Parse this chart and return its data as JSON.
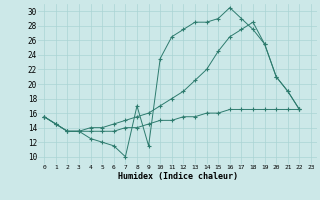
{
  "xlabel": "Humidex (Indice chaleur)",
  "background_color": "#cce8e8",
  "grid_color": "#aad4d4",
  "line_color": "#2d7b6e",
  "xlim": [
    -0.5,
    23.5
  ],
  "ylim": [
    9,
    31
  ],
  "xticks": [
    0,
    1,
    2,
    3,
    4,
    5,
    6,
    7,
    8,
    9,
    10,
    11,
    12,
    13,
    14,
    15,
    16,
    17,
    18,
    19,
    20,
    21,
    22,
    23
  ],
  "yticks": [
    10,
    12,
    14,
    16,
    18,
    20,
    22,
    24,
    26,
    28,
    30
  ],
  "line1_x": [
    0,
    1,
    2,
    3,
    4,
    5,
    6,
    7,
    8,
    9,
    10,
    11,
    12,
    13,
    14,
    15,
    16,
    17,
    18,
    19,
    20,
    21,
    22
  ],
  "line1_y": [
    15.5,
    14.5,
    13.5,
    13.5,
    12.5,
    12.0,
    11.5,
    10.0,
    17.0,
    11.5,
    23.5,
    26.5,
    27.5,
    28.5,
    28.5,
    29.0,
    30.5,
    29.0,
    27.5,
    25.5,
    21.0,
    19.0,
    16.5
  ],
  "line2_x": [
    0,
    1,
    2,
    3,
    4,
    5,
    6,
    7,
    8,
    9,
    10,
    11,
    12,
    13,
    14,
    15,
    16,
    17,
    18,
    19,
    20,
    21,
    22
  ],
  "line2_y": [
    15.5,
    14.5,
    13.5,
    13.5,
    13.5,
    13.5,
    13.5,
    14.0,
    14.0,
    14.5,
    15.0,
    15.0,
    15.5,
    15.5,
    16.0,
    16.0,
    16.5,
    16.5,
    16.5,
    16.5,
    16.5,
    16.5,
    16.5
  ],
  "line3_x": [
    0,
    1,
    2,
    3,
    4,
    5,
    6,
    7,
    8,
    9,
    10,
    11,
    12,
    13,
    14,
    15,
    16,
    17,
    18,
    19,
    20,
    21,
    22
  ],
  "line3_y": [
    15.5,
    14.5,
    13.5,
    13.5,
    14.0,
    14.0,
    14.5,
    15.0,
    15.5,
    16.0,
    17.0,
    18.0,
    19.0,
    20.5,
    22.0,
    24.5,
    26.5,
    27.5,
    28.5,
    25.5,
    21.0,
    19.0,
    16.5
  ]
}
